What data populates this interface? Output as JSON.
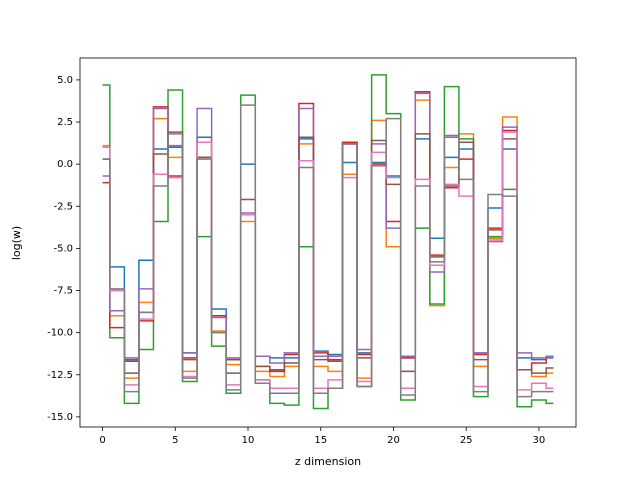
{
  "chart_data": {
    "type": "step",
    "xlabel": "z dimension",
    "ylabel": "log(w)",
    "x": [
      0,
      1,
      2,
      3,
      4,
      5,
      6,
      7,
      8,
      9,
      10,
      11,
      12,
      13,
      14,
      15,
      16,
      17,
      18,
      19,
      20,
      21,
      22,
      23,
      24,
      25,
      26,
      27,
      28,
      29,
      30,
      31
    ],
    "xlim": [
      -1.55,
      32.55
    ],
    "ylim": [
      -15.6,
      6.3
    ],
    "xticks": [
      0,
      5,
      10,
      15,
      20,
      25,
      30
    ],
    "yticks": [
      {
        "value": -15,
        "label": "-15.0"
      },
      {
        "value": -12.5,
        "label": "-12.5"
      },
      {
        "value": -10,
        "label": "-10.0"
      },
      {
        "value": -7.5,
        "label": "-7.5"
      },
      {
        "value": -5,
        "label": "-5.0"
      },
      {
        "value": -2.5,
        "label": "-2.5"
      },
      {
        "value": 0,
        "label": "0.0"
      },
      {
        "value": 2.5,
        "label": "2.5"
      },
      {
        "value": 5,
        "label": "5.0"
      }
    ],
    "series": [
      {
        "color": "#1f77b4",
        "values": [
          0.3,
          -6.1,
          -11.6,
          -5.7,
          0.9,
          1.0,
          -11.2,
          1.6,
          -8.6,
          -11.6,
          0.0,
          -11.4,
          -11.5,
          -11.5,
          1.5,
          -11.1,
          -11.3,
          0.1,
          -11.2,
          0.1,
          -0.7,
          -11.4,
          1.5,
          -4.4,
          0.4,
          0.9,
          -11.2,
          -2.6,
          0.9,
          -11.5,
          -11.6,
          -11.5
        ]
      },
      {
        "color": "#ff7f0e",
        "values": [
          1.1,
          -9.0,
          -12.7,
          -8.2,
          2.7,
          0.4,
          -12.3,
          1.3,
          -9.9,
          -11.9,
          -3.4,
          -12.3,
          -12.6,
          -12.0,
          1.2,
          -12.0,
          -12.3,
          -0.6,
          -12.7,
          2.6,
          -4.9,
          -11.5,
          3.8,
          -8.4,
          -0.2,
          1.8,
          -12.0,
          -4.4,
          2.8,
          -12.2,
          -12.6,
          -12.4
        ]
      },
      {
        "color": "#2ca02c",
        "values": [
          4.7,
          -10.3,
          -14.2,
          -11.0,
          -3.4,
          4.4,
          -12.9,
          -4.3,
          -10.8,
          -13.6,
          4.1,
          -12.8,
          -14.2,
          -14.3,
          -4.9,
          -14.5,
          -13.3,
          1.2,
          -13.2,
          5.3,
          3.0,
          -14.0,
          -3.8,
          -8.3,
          4.6,
          1.5,
          -13.8,
          -4.3,
          -1.5,
          -14.4,
          -14.0,
          -14.2
        ]
      },
      {
        "color": "#d62728",
        "values": [
          -1.1,
          -9.7,
          -11.7,
          -9.3,
          3.4,
          -0.7,
          -11.5,
          0.4,
          -9.0,
          -11.6,
          -3.0,
          -12.0,
          -12.3,
          -11.3,
          3.6,
          -11.2,
          -11.6,
          1.3,
          -11.3,
          0.0,
          -3.4,
          -11.5,
          4.3,
          -5.4,
          -1.4,
          0.3,
          -11.3,
          -3.8,
          2.0,
          -12.2,
          -11.8,
          -11.4
        ]
      },
      {
        "color": "#9467bd",
        "values": [
          -0.7,
          -8.7,
          -11.5,
          -7.4,
          3.3,
          1.1,
          -11.2,
          3.3,
          -9.1,
          -11.5,
          -2.9,
          -11.4,
          -11.8,
          -11.2,
          3.3,
          -11.4,
          -11.4,
          1.2,
          -11.0,
          1.2,
          -3.8,
          -11.4,
          4.2,
          -6.4,
          1.7,
          1.3,
          -11.2,
          -4.6,
          2.2,
          -11.2,
          -11.5,
          -11.4
        ]
      },
      {
        "color": "#8c564b",
        "values": [
          0.3,
          -7.5,
          -12.4,
          -8.8,
          0.6,
          1.9,
          -11.6,
          0.4,
          -10.0,
          -12.4,
          -2.1,
          -12.0,
          -12.2,
          -11.8,
          1.6,
          -11.6,
          -11.7,
          1.2,
          -11.5,
          1.4,
          -1.2,
          -12.3,
          1.8,
          -5.5,
          -1.3,
          1.3,
          -11.6,
          -3.9,
          1.5,
          -12.2,
          -12.4,
          -12.1
        ]
      },
      {
        "color": "#e377c2",
        "values": [
          1.0,
          -7.5,
          -13.1,
          -9.2,
          -0.6,
          -0.8,
          -12.6,
          1.3,
          -10.0,
          -13.1,
          -3.0,
          -12.8,
          -13.3,
          -13.3,
          0.2,
          -13.3,
          -12.8,
          -0.8,
          -12.9,
          0.7,
          -0.8,
          -13.3,
          -0.9,
          -6.0,
          -1.2,
          -1.9,
          -13.2,
          -4.5,
          1.9,
          -13.4,
          -13.0,
          -13.3
        ]
      },
      {
        "color": "#7f7f7f",
        "values": [
          0.3,
          -7.4,
          -13.5,
          -8.8,
          -1.3,
          1.8,
          -12.7,
          0.3,
          -10.0,
          -13.4,
          3.5,
          -13.0,
          -13.6,
          -13.6,
          -0.2,
          -13.6,
          -13.3,
          1.2,
          -13.2,
          -0.1,
          2.7,
          -13.7,
          -1.3,
          -5.8,
          1.6,
          -0.9,
          -13.5,
          -1.8,
          -1.9,
          -13.8,
          -13.5,
          -13.5
        ]
      }
    ]
  }
}
